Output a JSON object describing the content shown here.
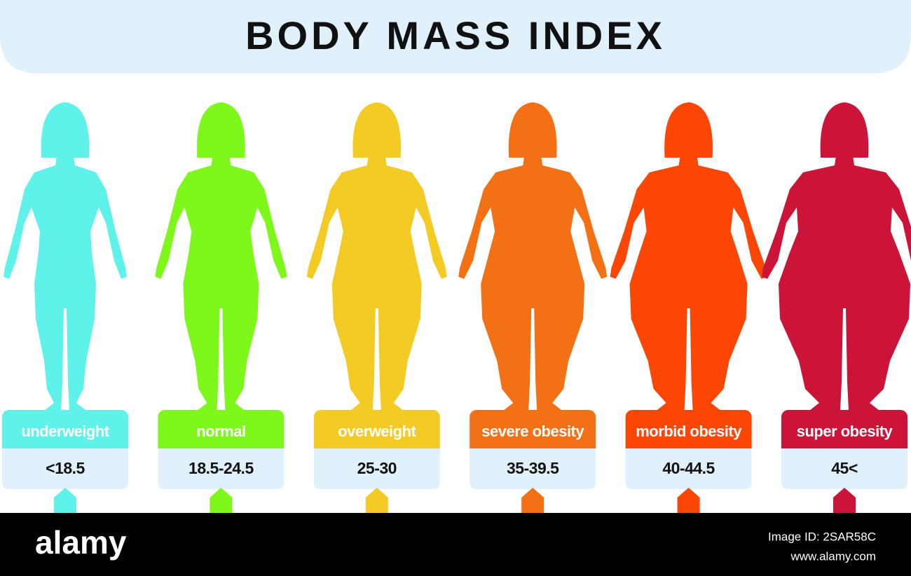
{
  "header": {
    "title": "BODY MASS INDEX"
  },
  "categories": [
    {
      "label": "underweight",
      "range": "<18.5",
      "color": "#5ef2ea"
    },
    {
      "label": "normal",
      "range": "18.5-24.5",
      "color": "#7ef81a"
    },
    {
      "label": "overweight",
      "range": "25-30",
      "color": "#f3cb24"
    },
    {
      "label": "severe obesity",
      "range": "35-39.5",
      "color": "#f47014"
    },
    {
      "label": "morbid obesity",
      "range": "40-44.5",
      "color": "#fb4606"
    },
    {
      "label": "super obesity",
      "range": "45<",
      "color": "#cc1338"
    }
  ],
  "footer": {
    "brand": "alamy",
    "image_id": "Image ID: 2SAR58C",
    "url": "www.alamy.com"
  }
}
